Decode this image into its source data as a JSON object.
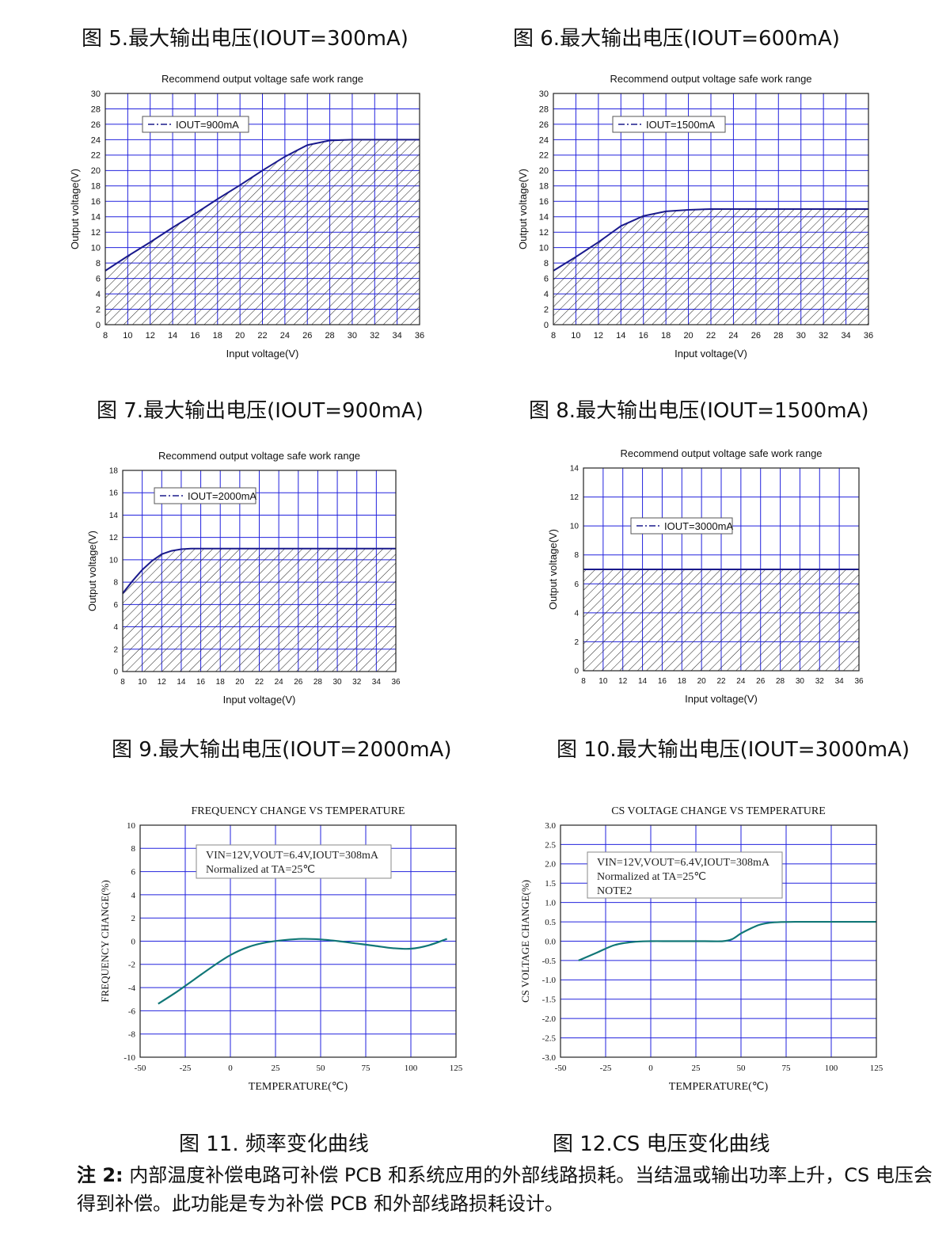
{
  "captions": {
    "fig5": "图 5.最大输出电压(IOUT=300mA)",
    "fig6": "图 6.最大输出电压(IOUT=600mA)",
    "fig7": "图 7.最大输出电压(IOUT=900mA)",
    "fig8": "图 8.最大输出电压(IOUT=1500mA)",
    "fig9": "图 9.最大输出电压(IOUT=2000mA)",
    "fig10": "图 10.最大输出电压(IOUT=3000mA)",
    "fig11": "图 11. 频率变化曲线",
    "fig12": "图 12.CS 电压变化曲线"
  },
  "note": {
    "label": "注 2:",
    "text": " 内部温度补偿电路可补偿 PCB 和系统应用的外部线路损耗。当结温或输出功率上升，CS 电压会得到补偿。此功能是专为补偿 PCB 和外部线路损耗设计。"
  },
  "chart_data": [
    {
      "type": "area",
      "title": "Recommend output voltage safe work range",
      "xlabel": "Input voltage(V)",
      "ylabel": "Output voltage(V)",
      "xlim": [
        8,
        36
      ],
      "ylim": [
        0,
        30
      ],
      "x_ticks": [
        8,
        10,
        12,
        14,
        16,
        18,
        20,
        22,
        24,
        26,
        28,
        30,
        32,
        34,
        36
      ],
      "y_ticks": [
        0,
        2,
        4,
        6,
        8,
        10,
        12,
        14,
        16,
        18,
        20,
        22,
        24,
        26,
        28,
        30
      ],
      "grid": true,
      "legend": "top-left",
      "fill": "hatched",
      "series": [
        {
          "name": "IOUT=900mA",
          "x": [
            8,
            10,
            12,
            14,
            16,
            18,
            20,
            22,
            24,
            26,
            28,
            30,
            32,
            34,
            36
          ],
          "y": [
            7,
            8.9,
            10.7,
            12.6,
            14.4,
            16.3,
            18.1,
            20,
            21.8,
            23.3,
            23.9,
            24,
            24,
            24,
            24
          ]
        }
      ]
    },
    {
      "type": "area",
      "title": "Recommend output voltage safe work range",
      "xlabel": "Input voltage(V)",
      "ylabel": "Output voltage(V)",
      "xlim": [
        8,
        36
      ],
      "ylim": [
        0,
        30
      ],
      "x_ticks": [
        8,
        10,
        12,
        14,
        16,
        18,
        20,
        22,
        24,
        26,
        28,
        30,
        32,
        34,
        36
      ],
      "y_ticks": [
        0,
        2,
        4,
        6,
        8,
        10,
        12,
        14,
        16,
        18,
        20,
        22,
        24,
        26,
        28,
        30
      ],
      "grid": true,
      "legend": "top-left",
      "fill": "hatched",
      "series": [
        {
          "name": "IOUT=1500mA",
          "x": [
            8,
            10,
            12,
            14,
            16,
            18,
            20,
            22,
            24,
            26,
            28,
            30,
            32,
            34,
            36
          ],
          "y": [
            7,
            8.8,
            10.7,
            12.8,
            14.1,
            14.7,
            14.9,
            15,
            15,
            15,
            15,
            15,
            15,
            15,
            15
          ]
        }
      ]
    },
    {
      "type": "area",
      "title": "Recommend output voltage safe work range",
      "xlabel": "Input voltage(V)",
      "ylabel": "Output voltage(V)",
      "xlim": [
        8,
        36
      ],
      "ylim": [
        0,
        18
      ],
      "x_ticks": [
        8,
        10,
        12,
        14,
        16,
        18,
        20,
        22,
        24,
        26,
        28,
        30,
        32,
        34,
        36
      ],
      "y_ticks": [
        0,
        2,
        4,
        6,
        8,
        10,
        12,
        14,
        16,
        18
      ],
      "grid": true,
      "legend": "top-left",
      "fill": "hatched",
      "series": [
        {
          "name": "IOUT=2000mA",
          "x": [
            8,
            9,
            10,
            11,
            12,
            13,
            14,
            15,
            16,
            18,
            20,
            24,
            28,
            32,
            36
          ],
          "y": [
            7,
            8.1,
            9.1,
            9.9,
            10.5,
            10.8,
            10.95,
            11,
            11,
            11,
            11,
            11,
            11,
            11,
            11
          ]
        }
      ]
    },
    {
      "type": "area",
      "title": "Recommend output voltage safe work range",
      "xlabel": "Input voltage(V)",
      "ylabel": "Output voltage(V)",
      "xlim": [
        8,
        36
      ],
      "ylim": [
        0,
        14
      ],
      "x_ticks": [
        8,
        10,
        12,
        14,
        16,
        18,
        20,
        22,
        24,
        26,
        28,
        30,
        32,
        34,
        36
      ],
      "y_ticks": [
        0,
        2,
        4,
        6,
        8,
        10,
        12,
        14
      ],
      "grid": true,
      "legend": "top-left",
      "fill": "hatched",
      "series": [
        {
          "name": "IOUT=3000mA",
          "x": [
            8,
            36
          ],
          "y": [
            7,
            7
          ]
        }
      ]
    },
    {
      "type": "line",
      "title": "FREQUENCY CHANGE VS TEMPERATURE",
      "xlabel": "TEMPERATURE(℃)",
      "ylabel": "FREQUENCY CHANGE(%)",
      "xlim": [
        -50,
        125
      ],
      "ylim": [
        -10,
        10
      ],
      "x_ticks": [
        -50,
        -25,
        0,
        25,
        50,
        75,
        100,
        125
      ],
      "y_ticks": [
        -10,
        -8,
        -6,
        -4,
        -2,
        0,
        2,
        4,
        6,
        8,
        10
      ],
      "grid": true,
      "annotation": [
        "VIN=12V,VOUT=6.4V,IOUT=308mA",
        "Normalized at TA=25℃"
      ],
      "series": [
        {
          "x": [
            -40,
            -30,
            -20,
            -10,
            0,
            10,
            20,
            30,
            40,
            50,
            60,
            70,
            80,
            90,
            100,
            110,
            120
          ],
          "y": [
            -5.4,
            -4.4,
            -3.3,
            -2.2,
            -1.2,
            -0.5,
            -0.1,
            0.1,
            0.2,
            0.15,
            0,
            -0.2,
            -0.4,
            -0.6,
            -0.65,
            -0.35,
            0.2
          ]
        }
      ]
    },
    {
      "type": "line",
      "title": "CS VOLTAGE CHANGE VS TEMPERATURE",
      "xlabel": "TEMPERATURE(℃)",
      "ylabel": "CS VOLTAGE CHANGE(%)",
      "xlim": [
        -50,
        125
      ],
      "ylim": [
        -3.0,
        3.0
      ],
      "x_ticks": [
        -50,
        -25,
        0,
        25,
        50,
        75,
        100,
        125
      ],
      "y_ticks": [
        "-3.0",
        "-2.5",
        "-2.0",
        "-1.5",
        "-1.0",
        "-0.5",
        "0.0",
        "0.5",
        "1.0",
        "1.5",
        "2.0",
        "2.5",
        "3.0"
      ],
      "grid": true,
      "annotation": [
        "VIN=12V,VOUT=6.4V,IOUT=308mA",
        "Normalized at TA=25℃",
        "NOTE2"
      ],
      "series": [
        {
          "x": [
            -40,
            -30,
            -20,
            -10,
            0,
            10,
            20,
            30,
            40,
            45,
            50,
            55,
            60,
            65,
            70,
            80,
            100,
            125
          ],
          "y": [
            -0.5,
            -0.3,
            -0.1,
            -0.02,
            0,
            0,
            0,
            0,
            0,
            0.05,
            0.2,
            0.32,
            0.42,
            0.47,
            0.49,
            0.5,
            0.5,
            0.5
          ]
        }
      ]
    }
  ]
}
